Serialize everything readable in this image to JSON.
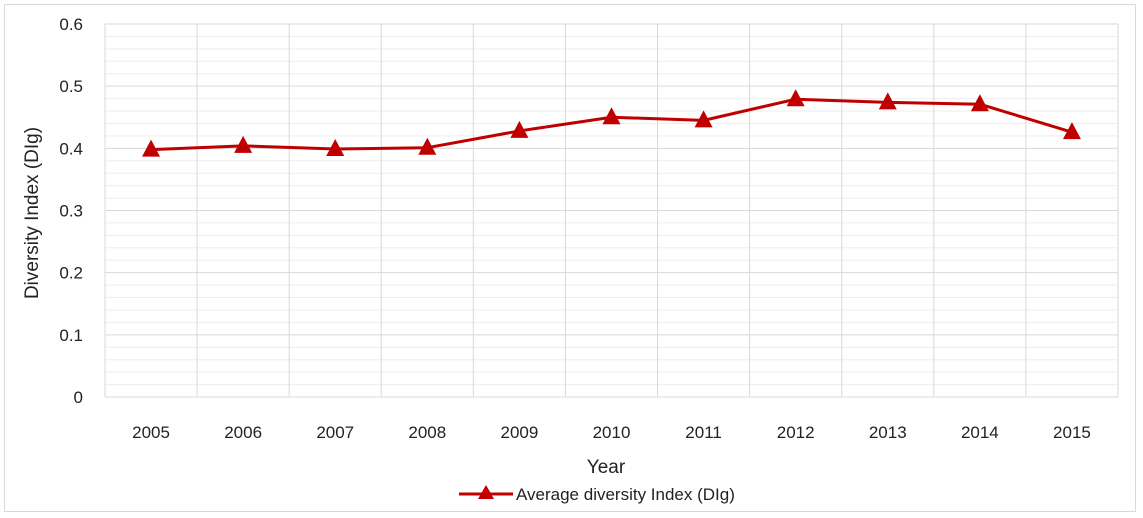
{
  "chart_data": {
    "type": "line",
    "categories": [
      "2005",
      "2006",
      "2007",
      "2008",
      "2009",
      "2010",
      "2011",
      "2012",
      "2013",
      "2014",
      "2015"
    ],
    "series": [
      {
        "name": "Average diversity Index (DIg)",
        "values": [
          0.398,
          0.404,
          0.399,
          0.401,
          0.428,
          0.45,
          0.445,
          0.479,
          0.474,
          0.471,
          0.426
        ],
        "color": "#c00000",
        "marker": "triangle"
      }
    ],
    "xlabel": "Year",
    "ylabel": "Diversity Index (DIg)",
    "ylim": [
      0,
      0.6
    ],
    "yticks": [
      "0",
      "0.1",
      "0.2",
      "0.3",
      "0.4",
      "0.5",
      "0.6"
    ],
    "grid": true,
    "legend_position": "bottom"
  }
}
